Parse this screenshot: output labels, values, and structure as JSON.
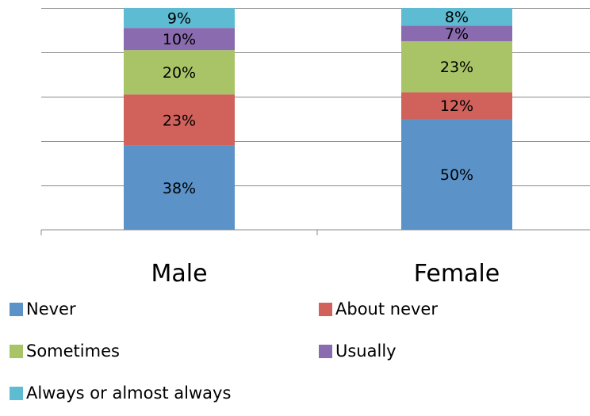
{
  "chart_data": {
    "type": "bar",
    "stacked": true,
    "categories": [
      "Male",
      "Female"
    ],
    "ylim": [
      0,
      100
    ],
    "grid": true,
    "legend_position": "bottom",
    "series": [
      {
        "name": "Never",
        "color": "#5b93c9",
        "values": [
          38,
          50
        ],
        "labels": [
          "38%",
          "50%"
        ]
      },
      {
        "name": "About never",
        "color": "#d0615b",
        "values": [
          23,
          12
        ],
        "labels": [
          "23%",
          "12%"
        ]
      },
      {
        "name": "Sometimes",
        "color": "#a9c467",
        "values": [
          20,
          23
        ],
        "labels": [
          "20%",
          "23%"
        ]
      },
      {
        "name": "Usually",
        "color": "#8a6bb0",
        "values": [
          10,
          7
        ],
        "labels": [
          "10%",
          "7%"
        ]
      },
      {
        "name": "Always or almost always",
        "color": "#5dbcd2",
        "values": [
          9,
          8
        ],
        "labels": [
          "9%",
          "8%"
        ]
      }
    ]
  }
}
